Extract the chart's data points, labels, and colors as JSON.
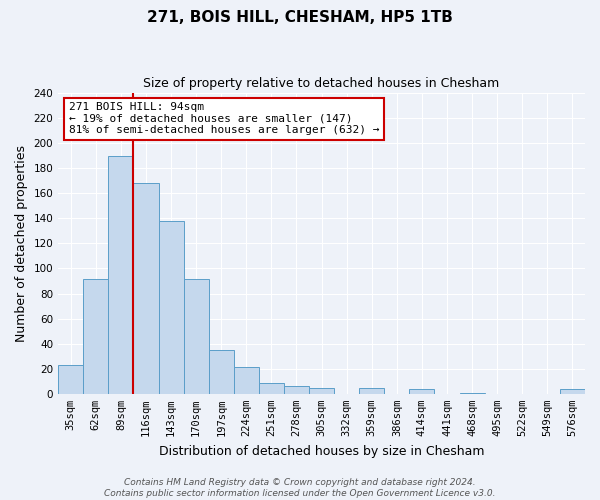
{
  "title": "271, BOIS HILL, CHESHAM, HP5 1TB",
  "subtitle": "Size of property relative to detached houses in Chesham",
  "xlabel": "Distribution of detached houses by size in Chesham",
  "ylabel": "Number of detached properties",
  "bin_labels": [
    "35sqm",
    "62sqm",
    "89sqm",
    "116sqm",
    "143sqm",
    "170sqm",
    "197sqm",
    "224sqm",
    "251sqm",
    "278sqm",
    "305sqm",
    "332sqm",
    "359sqm",
    "386sqm",
    "414sqm",
    "441sqm",
    "468sqm",
    "495sqm",
    "522sqm",
    "549sqm",
    "576sqm"
  ],
  "bar_heights": [
    23,
    92,
    190,
    168,
    138,
    92,
    35,
    21,
    9,
    6,
    5,
    0,
    5,
    0,
    4,
    0,
    1,
    0,
    0,
    0,
    4
  ],
  "bar_color": "#c5d8ed",
  "bar_edge_color": "#5b9ec9",
  "property_line_bin": 2,
  "annotation_title": "271 BOIS HILL: 94sqm",
  "annotation_line1": "← 19% of detached houses are smaller (147)",
  "annotation_line2": "81% of semi-detached houses are larger (632) →",
  "annotation_box_color": "#ffffff",
  "annotation_box_edge": "#cc0000",
  "line_color": "#cc0000",
  "ylim": [
    0,
    240
  ],
  "yticks": [
    0,
    20,
    40,
    60,
    80,
    100,
    120,
    140,
    160,
    180,
    200,
    220,
    240
  ],
  "footer_line1": "Contains HM Land Registry data © Crown copyright and database right 2024.",
  "footer_line2": "Contains public sector information licensed under the Open Government Licence v3.0.",
  "background_color": "#eef2f9",
  "grid_color": "#ffffff",
  "title_fontsize": 11,
  "subtitle_fontsize": 9,
  "axis_label_fontsize": 9,
  "tick_fontsize": 7.5,
  "footer_fontsize": 6.5
}
